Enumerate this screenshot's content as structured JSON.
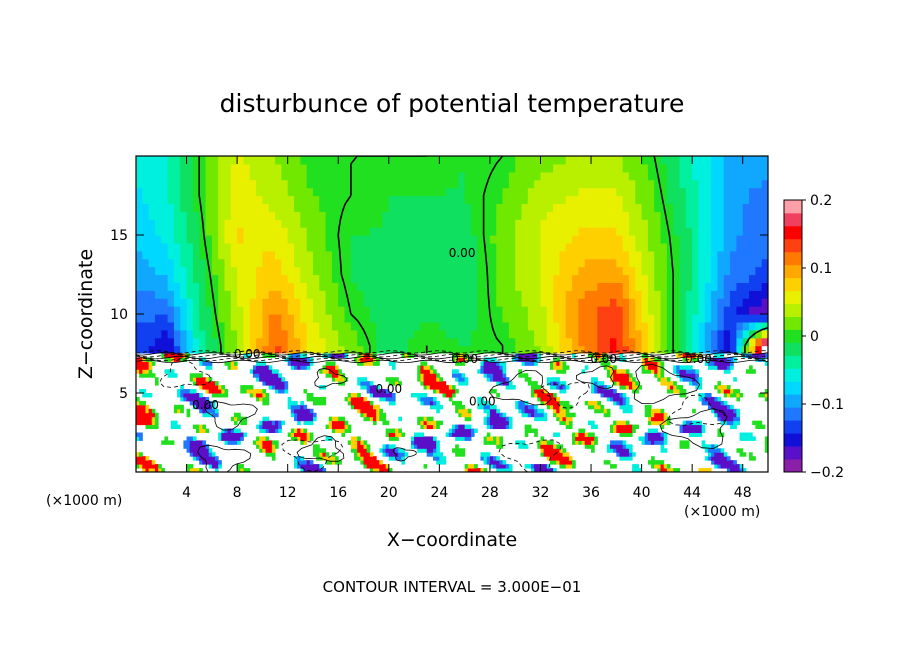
{
  "chart_data": {
    "type": "heatmap",
    "title": "disturbunce of potential temperature",
    "xlabel": "X−coordinate",
    "ylabel": "Z−coordinate",
    "x_unit_left": "(×1000 m)",
    "x_unit_right": "(×1000 m)",
    "footer": "CONTOUR INTERVAL = 3.000E−01",
    "xlim": [
      0,
      50
    ],
    "ylim": [
      0,
      20
    ],
    "x_ticks": [
      4,
      8,
      12,
      16,
      20,
      24,
      28,
      32,
      36,
      40,
      44,
      48
    ],
    "x_tick_labels": [
      "4",
      "8",
      "12",
      "16",
      "20",
      "24",
      "28",
      "32",
      "36",
      "40",
      "44",
      "48"
    ],
    "y_ticks": [
      5,
      10,
      15
    ],
    "y_tick_labels": [
      "5",
      "10",
      "15"
    ],
    "colorbar": {
      "range": [
        -0.2,
        0.2
      ],
      "ticks": [
        -0.2,
        -0.1,
        0,
        0.1,
        0.2
      ],
      "tick_labels": [
        "−0.2",
        "−0.1",
        "0",
        "0.1",
        "0.2"
      ],
      "colors": [
        "#8a1fa8",
        "#5a0fc8",
        "#1010d8",
        "#1040f0",
        "#1f78ff",
        "#10a8ff",
        "#00d8ff",
        "#00f0e0",
        "#00f0a0",
        "#10e060",
        "#20e020",
        "#70e800",
        "#b8f000",
        "#e8f000",
        "#ffd000",
        "#ffa800",
        "#ff7a00",
        "#ff4010",
        "#ff0000",
        "#f04060",
        "#ff9fa8"
      ]
    },
    "contour_labels": [
      {
        "text": "0.00",
        "x": 25.8,
        "y": 13.6
      },
      {
        "text": "0.00",
        "x": 8.8,
        "y": 7.2
      },
      {
        "text": "0.00",
        "x": 26.0,
        "y": 6.9
      },
      {
        "text": "0.00",
        "x": 37.0,
        "y": 6.9
      },
      {
        "text": "0.00",
        "x": 44.5,
        "y": 6.9
      },
      {
        "text": "0.00",
        "x": 5.5,
        "y": 4.0
      },
      {
        "text": "0.00",
        "x": 20.0,
        "y": 5.0
      },
      {
        "text": "0.00",
        "x": 27.4,
        "y": 4.2
      }
    ],
    "regions": {
      "upper": {
        "z_range": [
          7.5,
          20
        ],
        "description_free": true,
        "columns": [
          {
            "x": 0,
            "values": [
              -0.13,
              -0.12,
              -0.1,
              -0.08,
              -0.07,
              -0.06
            ]
          },
          {
            "x": 2.5,
            "values": [
              -0.16,
              -0.12,
              -0.08,
              -0.06,
              -0.05,
              -0.05
            ]
          },
          {
            "x": 5,
            "values": [
              -0.04,
              -0.03,
              -0.02,
              -0.01,
              0.0,
              0.0
            ]
          },
          {
            "x": 8,
            "values": [
              0.03,
              0.04,
              0.05,
              0.07,
              0.06,
              0.05
            ]
          },
          {
            "x": 11,
            "values": [
              0.13,
              0.11,
              0.08,
              0.06,
              0.04,
              0.03
            ]
          },
          {
            "x": 14,
            "values": [
              0.06,
              0.05,
              0.03,
              0.02,
              0.01,
              0.0
            ]
          },
          {
            "x": 17,
            "values": [
              0.02,
              0.0,
              -0.01,
              -0.01,
              0.0,
              0.0
            ]
          },
          {
            "x": 20,
            "values": [
              -0.02,
              -0.02,
              -0.02,
              -0.01,
              -0.01,
              0.0
            ]
          },
          {
            "x": 23,
            "values": [
              0.0,
              -0.01,
              -0.02,
              -0.02,
              -0.01,
              0.0
            ]
          },
          {
            "x": 26,
            "values": [
              -0.01,
              -0.02,
              -0.03,
              -0.02,
              -0.01,
              -0.01
            ]
          },
          {
            "x": 29,
            "values": [
              0.0,
              0.01,
              0.02,
              0.02,
              0.01,
              0.0
            ]
          },
          {
            "x": 32,
            "values": [
              0.03,
              0.04,
              0.05,
              0.05,
              0.04,
              0.02
            ]
          },
          {
            "x": 35,
            "values": [
              0.1,
              0.11,
              0.09,
              0.07,
              0.05,
              0.03
            ]
          },
          {
            "x": 38,
            "values": [
              0.15,
              0.14,
              0.1,
              0.07,
              0.05,
              0.03
            ]
          },
          {
            "x": 41,
            "values": [
              0.05,
              0.04,
              0.03,
              0.02,
              0.01,
              0.0
            ]
          },
          {
            "x": 44,
            "values": [
              -0.05,
              -0.04,
              -0.03,
              -0.03,
              -0.04,
              -0.05
            ]
          },
          {
            "x": 47,
            "values": [
              -0.16,
              -0.14,
              -0.11,
              -0.1,
              -0.1,
              -0.09
            ]
          },
          {
            "x": 50,
            "values": [
              0.25,
              -0.19,
              -0.13,
              -0.12,
              -0.11,
              -0.1
            ]
          }
        ],
        "z_levels": [
          8,
          10,
          12.5,
          15,
          17.5,
          20
        ]
      }
    }
  }
}
